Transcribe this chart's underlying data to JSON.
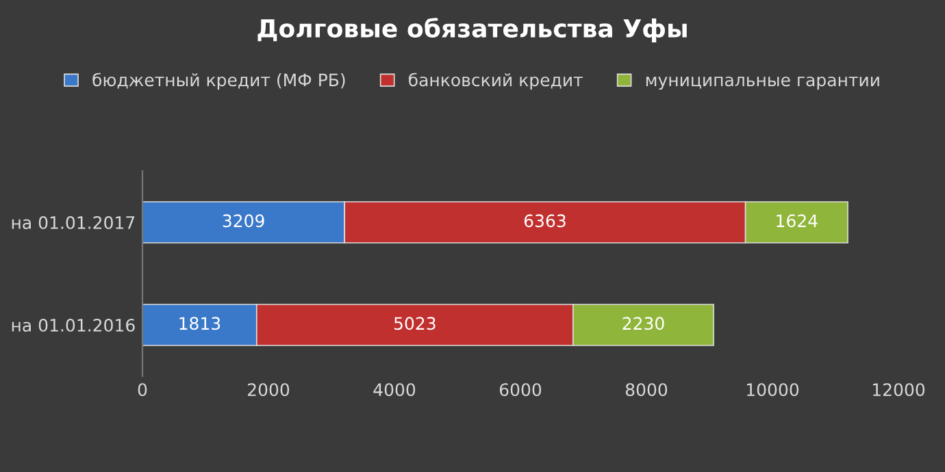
{
  "chart_data": {
    "type": "bar",
    "title": "Долговые обязательства Уфы",
    "orientation": "horizontal",
    "stacked": true,
    "categories": [
      "на 01.01.2017",
      "на 01.01.2016"
    ],
    "series": [
      {
        "name": "бюджетный кредит (МФ РБ)",
        "color": "#3a78c9",
        "values": [
          3209,
          1813
        ]
      },
      {
        "name": "банковский кредит",
        "color": "#c0302e",
        "values": [
          6363,
          5023
        ]
      },
      {
        "name": "муниципальные гарантии",
        "color": "#8fb53a",
        "values": [
          1624,
          2230
        ]
      }
    ],
    "xlim": [
      0,
      12000
    ],
    "xticks": [
      0,
      2000,
      4000,
      6000,
      8000,
      10000,
      12000
    ],
    "data_labels": true,
    "legend": "top",
    "grid": false
  }
}
